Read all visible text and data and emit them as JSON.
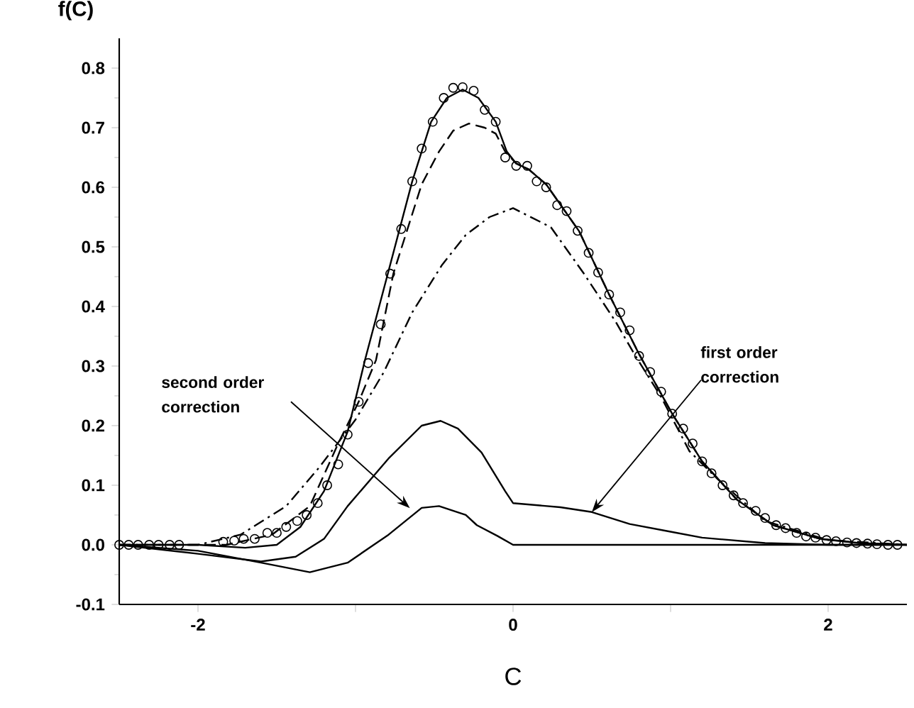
{
  "chart_data": {
    "type": "line",
    "xlabel": "C",
    "ylabel": "f(C)",
    "xlim": [
      -2.5,
      2.5
    ],
    "ylim": [
      -0.1,
      0.85
    ],
    "xticks": [
      -2,
      {
        "value": -1,
        "label": null
      },
      0,
      {
        "value": 1,
        "label": null
      },
      2
    ],
    "yticks": [
      -0.1,
      {
        "value": 0,
        "label": "0.0"
      },
      0.1,
      0.2,
      0.3,
      0.4,
      0.5,
      0.6,
      0.7,
      0.8
    ],
    "grid": false,
    "legend": false,
    "series": [
      {
        "type": "scatter",
        "marker": "circle",
        "color": "#000000",
        "x": [
          -2.5,
          -2.44,
          -2.38,
          -2.31,
          -2.25,
          -2.18,
          -2.12,
          -1.84,
          -1.77,
          -1.71,
          -1.64,
          -1.56,
          -1.5,
          -1.44,
          -1.37,
          -1.31,
          -1.24,
          -1.18,
          -1.11,
          -1.05,
          -0.98,
          -0.92,
          -0.84,
          -0.78,
          -0.71,
          -0.64,
          -0.58,
          -0.51,
          -0.44,
          -0.38,
          -0.32,
          -0.25,
          -0.18,
          -0.11,
          -0.05,
          0.02,
          0.09,
          0.15,
          0.21,
          0.28,
          0.34,
          0.41,
          0.48,
          0.54,
          0.61,
          0.68,
          0.74,
          0.8,
          0.87,
          0.94,
          1.01,
          1.08,
          1.14,
          1.2,
          1.26,
          1.33,
          1.4,
          1.46,
          1.54,
          1.6,
          1.67,
          1.73,
          1.8,
          1.86,
          1.92,
          1.99,
          2.05,
          2.12,
          2.18,
          2.25,
          2.31,
          2.38,
          2.44
        ],
        "values": [
          0.0,
          0.0,
          0.0,
          0.0,
          0.0,
          0.0,
          0.0,
          0.005,
          0.007,
          0.01,
          0.01,
          0.02,
          0.02,
          0.03,
          0.04,
          0.05,
          0.07,
          0.1,
          0.135,
          0.185,
          0.24,
          0.305,
          0.37,
          0.455,
          0.53,
          0.61,
          0.665,
          0.71,
          0.75,
          0.767,
          0.768,
          0.762,
          0.73,
          0.71,
          0.65,
          0.636,
          0.636,
          0.61,
          0.6,
          0.57,
          0.56,
          0.527,
          0.49,
          0.457,
          0.42,
          0.39,
          0.36,
          0.317,
          0.29,
          0.257,
          0.22,
          0.195,
          0.17,
          0.14,
          0.12,
          0.1,
          0.083,
          0.07,
          0.057,
          0.045,
          0.033,
          0.028,
          0.02,
          0.014,
          0.012,
          0.008,
          0.006,
          0.004,
          0.003,
          0.002,
          0.001,
          0.0,
          0.0
        ]
      },
      {
        "line_style": "solid",
        "color": "#000000",
        "x": [
          -2.5,
          -2.0,
          -1.7,
          -1.5,
          -1.35,
          -1.2,
          -1.05,
          -0.94,
          -0.8,
          -0.64,
          -0.52,
          -0.42,
          -0.32,
          -0.22,
          -0.11,
          -0.04,
          0.02,
          0.1,
          0.21,
          0.42,
          0.61,
          0.8,
          1.01,
          1.2,
          1.42,
          1.65,
          1.95,
          2.2,
          2.5
        ],
        "values": [
          0.0,
          0.0,
          -0.005,
          0.0,
          0.03,
          0.09,
          0.19,
          0.31,
          0.45,
          0.61,
          0.71,
          0.75,
          0.764,
          0.75,
          0.71,
          0.66,
          0.64,
          0.63,
          0.605,
          0.526,
          0.42,
          0.32,
          0.22,
          0.14,
          0.076,
          0.033,
          0.01,
          0.003,
          0.0
        ]
      },
      {
        "line_style": "dashed",
        "color": "#000000",
        "x": [
          -2.5,
          -2.0,
          -1.82,
          -1.53,
          -1.29,
          -1.11,
          -0.98,
          -0.87,
          -0.76,
          -0.67,
          -0.58,
          -0.47,
          -0.38,
          -0.28,
          -0.18,
          -0.11,
          -0.05,
          0.02,
          0.1,
          0.21,
          0.42,
          0.61,
          0.8,
          1.01,
          1.2,
          1.42,
          1.65,
          1.95,
          2.2,
          2.5
        ],
        "values": [
          0.0,
          0.0,
          0.0,
          0.017,
          0.065,
          0.17,
          0.24,
          0.31,
          0.455,
          0.53,
          0.605,
          0.66,
          0.695,
          0.707,
          0.7,
          0.69,
          0.66,
          0.64,
          0.63,
          0.605,
          0.526,
          0.42,
          0.32,
          0.22,
          0.14,
          0.076,
          0.033,
          0.01,
          0.003,
          0.0
        ]
      },
      {
        "line_style": "dashdot",
        "color": "#000000",
        "x": [
          -2.5,
          -2.0,
          -1.73,
          -1.44,
          -1.23,
          -1.0,
          -0.82,
          -0.64,
          -0.45,
          -0.3,
          -0.15,
          0.0,
          0.24,
          0.45,
          0.65,
          0.77,
          0.94,
          1.12,
          1.3,
          1.6,
          2.0,
          2.5
        ],
        "values": [
          0.0,
          0.0,
          0.017,
          0.065,
          0.13,
          0.21,
          0.29,
          0.39,
          0.47,
          0.52,
          0.55,
          0.565,
          0.533,
          0.455,
          0.375,
          0.32,
          0.248,
          0.157,
          0.11,
          0.04,
          0.008,
          0.0
        ]
      },
      {
        "line_style": "solid",
        "color": "#000000",
        "x": [
          -2.5,
          -2.0,
          -1.6,
          -1.38,
          -1.2,
          -1.05,
          -0.79,
          -0.58,
          -0.46,
          -0.35,
          -0.2,
          -0.05,
          0.0,
          0.3,
          0.5,
          0.74,
          1.0,
          1.2,
          1.6,
          2.0,
          2.5
        ],
        "values": [
          0.0,
          -0.015,
          -0.028,
          -0.02,
          0.01,
          0.065,
          0.145,
          0.2,
          0.208,
          0.195,
          0.155,
          0.09,
          0.07,
          0.063,
          0.055,
          0.035,
          0.022,
          0.012,
          0.003,
          0.0,
          0.0
        ]
      },
      {
        "line_style": "solid",
        "color": "#000000",
        "x": [
          -2.5,
          -2.0,
          -1.6,
          -1.29,
          -1.05,
          -0.79,
          -0.58,
          -0.47,
          -0.3,
          -0.23,
          -0.1,
          0.0,
          1.0,
          2.5
        ],
        "values": [
          0.0,
          -0.01,
          -0.03,
          -0.046,
          -0.03,
          0.017,
          0.062,
          0.065,
          0.05,
          0.033,
          0.015,
          0.0,
          0.0,
          0.0
        ]
      }
    ],
    "annotations": [
      "second order correction",
      {
        "text": "first order correction",
        "x": 0.5,
        "y": 0.055
      }
    ]
  }
}
